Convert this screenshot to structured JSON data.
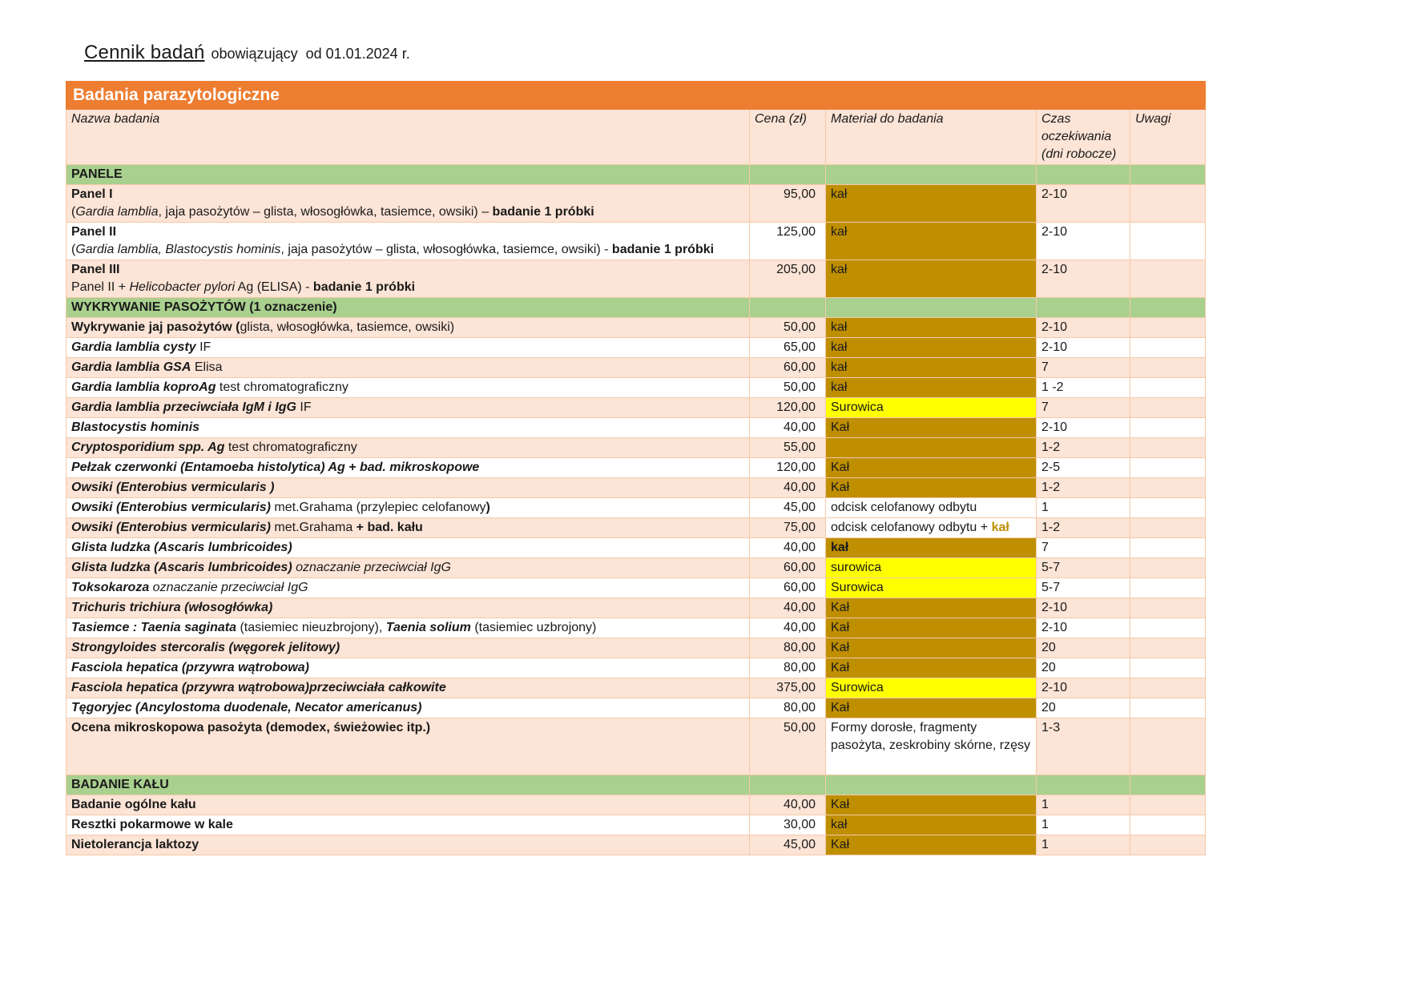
{
  "page": {
    "title_main": "Cennik badań",
    "title_suffix": "obowiązujący  od 01.01.2024 r."
  },
  "colors": {
    "header_orange": "#ED7D31",
    "row_peach": "#FCE4D6",
    "section_green": "#A9D08E",
    "material_gold": "#BF8F00",
    "material_yellow": "#FFFF00",
    "gold_text": "#BF8F00",
    "grid_line": "#F5C9A8"
  },
  "table": {
    "header_bar": "Badania parazytologiczne",
    "columns": [
      "Nazwa badania",
      "Cena (zł)",
      "Materiał do badania",
      "Czas oczekiwania (dni robocze)",
      "Uwagi"
    ],
    "rows": [
      {
        "kind": "section",
        "label": "PANELE"
      },
      {
        "kind": "test",
        "bg": "peach",
        "name": [
          [
            {
              "t": "Panel I",
              "b": 1
            }
          ],
          [
            {
              "t": "("
            },
            {
              "t": "Gardia lamblia",
              "i": 1
            },
            {
              "t": ", jaja pasożytów – glista, włosogłówka, tasiemce, owsiki) – "
            },
            {
              "t": "badanie 1 próbki",
              "b": 1
            }
          ]
        ],
        "price": "95,00",
        "mat": {
          "style": "gold",
          "runs": [
            {
              "t": "kał"
            }
          ]
        },
        "time": "2-10",
        "note": ""
      },
      {
        "kind": "test",
        "bg": "white",
        "name": [
          [
            {
              "t": "Panel II",
              "b": 1
            }
          ],
          [
            {
              "t": "("
            },
            {
              "t": "Gardia lamblia, Blastocystis hominis",
              "i": 1
            },
            {
              "t": ", jaja pasożytów – glista, włosogłówka, tasiemce, owsiki) - "
            },
            {
              "t": "badanie 1 próbki",
              "b": 1
            }
          ]
        ],
        "price": "125,00",
        "mat": {
          "style": "gold",
          "runs": [
            {
              "t": "kał"
            }
          ]
        },
        "time": "2-10",
        "note": ""
      },
      {
        "kind": "test",
        "bg": "peach",
        "name": [
          [
            {
              "t": "Panel III",
              "b": 1
            }
          ],
          [
            {
              "t": "Panel II + "
            },
            {
              "t": "Helicobacter pylori",
              "i": 1
            },
            {
              "t": " Ag (ELISA) - "
            },
            {
              "t": "badanie 1 próbki",
              "b": 1
            }
          ]
        ],
        "price": "205,00",
        "mat": {
          "style": "gold",
          "runs": [
            {
              "t": "kał"
            }
          ]
        },
        "time": "2-10",
        "note": ""
      },
      {
        "kind": "section",
        "label": "WYKRYWANIE PASOŻYTÓW (1 oznaczenie)"
      },
      {
        "kind": "test",
        "bg": "peach",
        "name": [
          [
            {
              "t": "Wykrywanie jaj pasożytów (",
              "b": 1
            },
            {
              "t": "glista, włosogłówka, tasiemce, owsiki)"
            }
          ]
        ],
        "price": "50,00",
        "mat": {
          "style": "gold",
          "runs": [
            {
              "t": "kał"
            }
          ]
        },
        "time": "2-10",
        "note": ""
      },
      {
        "kind": "test",
        "bg": "white",
        "name": [
          [
            {
              "t": "Gardia lamblia cysty",
              "b": 1,
              "i": 1
            },
            {
              "t": "  IF"
            }
          ]
        ],
        "price": "65,00",
        "mat": {
          "style": "gold",
          "runs": [
            {
              "t": "kał"
            }
          ]
        },
        "time": "2-10",
        "note": ""
      },
      {
        "kind": "test",
        "bg": "peach",
        "name": [
          [
            {
              "t": "Gardia lamblia  GSA",
              "b": 1,
              "i": 1
            },
            {
              "t": " Elisa"
            }
          ]
        ],
        "price": "60,00",
        "mat": {
          "style": "gold",
          "runs": [
            {
              "t": "kał"
            }
          ]
        },
        "time": "7",
        "note": ""
      },
      {
        "kind": "test",
        "bg": "white",
        "name": [
          [
            {
              "t": "Gardia lamblia  koproAg",
              "b": 1,
              "i": 1
            },
            {
              "t": " test chromatograficzny"
            }
          ]
        ],
        "price": "50,00",
        "mat": {
          "style": "gold",
          "runs": [
            {
              "t": "kał"
            }
          ]
        },
        "time": "1 -2",
        "note": ""
      },
      {
        "kind": "test",
        "bg": "peach",
        "name": [
          [
            {
              "t": "Gardia lamblia  przeciwciała IgM i IgG",
              "b": 1,
              "i": 1
            },
            {
              "t": "  IF"
            }
          ]
        ],
        "price": "120,00",
        "mat": {
          "style": "yellow",
          "runs": [
            {
              "t": "Surowica"
            }
          ]
        },
        "time": "7",
        "note": ""
      },
      {
        "kind": "test",
        "bg": "white",
        "name": [
          [
            {
              "t": "Blastocystis hominis",
              "b": 1,
              "i": 1
            }
          ]
        ],
        "price": "40,00",
        "mat": {
          "style": "gold",
          "runs": [
            {
              "t": "Kał"
            }
          ]
        },
        "time": "2-10",
        "note": ""
      },
      {
        "kind": "test",
        "bg": "peach",
        "name": [
          [
            {
              "t": "Cryptosporidium spp. Ag",
              "b": 1,
              "i": 1
            },
            {
              "t": " test chromatograficzny"
            }
          ]
        ],
        "price": "55,00",
        "mat": {
          "style": "gold",
          "runs": []
        },
        "time": "1-2",
        "note": ""
      },
      {
        "kind": "test",
        "bg": "white",
        "name": [
          [
            {
              "t": "Pełzak czerwonki (Entamoeba histolytica) Ag + bad. mikroskopowe",
              "b": 1,
              "i": 1
            }
          ]
        ],
        "price": "120,00",
        "mat": {
          "style": "gold",
          "runs": [
            {
              "t": "Kał"
            }
          ]
        },
        "time": "2-5",
        "note": ""
      },
      {
        "kind": "test",
        "bg": "peach",
        "name": [
          [
            {
              "t": "Owsiki (Enterobius vermicularis )",
              "b": 1,
              "i": 1
            }
          ]
        ],
        "price": "40,00",
        "mat": {
          "style": "gold",
          "runs": [
            {
              "t": "Kał"
            }
          ]
        },
        "time": "1-2",
        "note": ""
      },
      {
        "kind": "test",
        "bg": "white",
        "name": [
          [
            {
              "t": "Owsiki (Enterobius vermicularis)",
              "b": 1,
              "i": 1
            },
            {
              "t": " met.Grahama (przylepiec celofanowy"
            },
            {
              "t": ")",
              "b": 1
            }
          ]
        ],
        "price": "45,00",
        "mat": {
          "style": "plain",
          "runs": [
            {
              "t": "odcisk celofanowy odbytu"
            }
          ]
        },
        "time": "1",
        "note": ""
      },
      {
        "kind": "test",
        "bg": "peach",
        "name": [
          [
            {
              "t": "Owsiki (Enterobius vermicularis)",
              "b": 1,
              "i": 1
            },
            {
              "t": " met.Grahama "
            },
            {
              "t": " + bad. kału",
              "b": 1
            }
          ]
        ],
        "price": "75,00",
        "mat": {
          "style": "plain",
          "runs": [
            {
              "t": "odcisk celofanowy odbytu + "
            },
            {
              "t": "kał",
              "b": 1,
              "c": "gold"
            }
          ]
        },
        "time": "1-2",
        "note": ""
      },
      {
        "kind": "test",
        "bg": "white",
        "name": [
          [
            {
              "t": "Glista ludzka (Ascaris lumbricoides)",
              "b": 1,
              "i": 1
            }
          ]
        ],
        "price": "40,00",
        "mat": {
          "style": "gold",
          "runs": [
            {
              "t": "kał",
              "b": 1
            }
          ]
        },
        "time": "7",
        "note": ""
      },
      {
        "kind": "test",
        "bg": "peach",
        "name": [
          [
            {
              "t": "Glista ludzka (Ascaris lumbricoides)",
              "b": 1,
              "i": 1
            },
            {
              "t": " oznaczanie przeciwciał IgG",
              "i": 1
            }
          ]
        ],
        "price": "60,00",
        "mat": {
          "style": "yellow",
          "runs": [
            {
              "t": "surowica"
            }
          ]
        },
        "time": "5-7",
        "note": ""
      },
      {
        "kind": "test",
        "bg": "white",
        "name": [
          [
            {
              "t": "Toksokaroza",
              "b": 1,
              "i": 1
            },
            {
              "t": " oznaczanie przeciwciał IgG",
              "i": 1
            }
          ]
        ],
        "price": "60,00",
        "mat": {
          "style": "yellow",
          "runs": [
            {
              "t": "Surowica"
            }
          ]
        },
        "time": "5-7",
        "note": ""
      },
      {
        "kind": "test",
        "bg": "peach",
        "name": [
          [
            {
              "t": "Trichuris trichiura (włosogłówka)",
              "b": 1,
              "i": 1
            }
          ]
        ],
        "price": "40,00",
        "mat": {
          "style": "gold",
          "runs": [
            {
              "t": "Kał"
            }
          ]
        },
        "time": "2-10",
        "note": ""
      },
      {
        "kind": "test",
        "bg": "white",
        "name": [
          [
            {
              "t": "Tasiemce : Taenia saginata",
              "b": 1,
              "i": 1
            },
            {
              "t": " (tasiemiec nieuzbrojony), "
            },
            {
              "t": "Taenia solium",
              "b": 1,
              "i": 1
            },
            {
              "t": " (tasiemiec uzbrojony)"
            }
          ]
        ],
        "price": "40,00",
        "mat": {
          "style": "gold",
          "runs": [
            {
              "t": "Kał"
            }
          ]
        },
        "time": "2-10",
        "note": ""
      },
      {
        "kind": "test",
        "bg": "peach",
        "name": [
          [
            {
              "t": "Strongyloides stercoralis (węgorek jelitowy)",
              "b": 1,
              "i": 1
            }
          ]
        ],
        "price": "80,00",
        "mat": {
          "style": "gold",
          "runs": [
            {
              "t": "Kał"
            }
          ]
        },
        "time": "20",
        "note": ""
      },
      {
        "kind": "test",
        "bg": "white",
        "name": [
          [
            {
              "t": "Fasciola hepatica (przywra wątrobowa)",
              "b": 1,
              "i": 1
            }
          ]
        ],
        "price": "80,00",
        "mat": {
          "style": "gold",
          "runs": [
            {
              "t": "Kał"
            }
          ]
        },
        "time": "20",
        "note": ""
      },
      {
        "kind": "test",
        "bg": "peach",
        "name": [
          [
            {
              "t": "Fasciola hepatica (przywra wątrobowa)przeciwciała całkowite",
              "b": 1,
              "i": 1
            }
          ]
        ],
        "price": "375,00",
        "mat": {
          "style": "yellow",
          "runs": [
            {
              "t": "Surowica"
            }
          ]
        },
        "time": "2-10",
        "note": ""
      },
      {
        "kind": "test",
        "bg": "white",
        "name": [
          [
            {
              "t": "Tęgoryjec (Ancylostoma duodenale, Necator americanus)",
              "b": 1,
              "i": 1
            }
          ]
        ],
        "price": "80,00",
        "mat": {
          "style": "gold",
          "runs": [
            {
              "t": "Kał"
            }
          ]
        },
        "time": "20",
        "note": ""
      },
      {
        "kind": "test",
        "bg": "peach",
        "minh": 68,
        "name": [
          [
            {
              "t": "Ocena mikroskopowa pasożyta (demodex, świeżowiec itp.)",
              "b": 1
            }
          ]
        ],
        "price": "50,00",
        "mat": {
          "style": "plain",
          "runs": [
            {
              "t": "Formy dorosłe, fragmenty pasożyta, zeskrobiny skórne, rzęsy"
            }
          ]
        },
        "time": "1-3",
        "note": ""
      },
      {
        "kind": "section",
        "label": "BADANIE  KAŁU"
      },
      {
        "kind": "test",
        "bg": "peach",
        "name": [
          [
            {
              "t": "Badanie ogólne kału",
              "b": 1
            }
          ]
        ],
        "price": "40,00",
        "mat": {
          "style": "gold",
          "runs": [
            {
              "t": "Kał"
            }
          ]
        },
        "time": "1",
        "note": ""
      },
      {
        "kind": "test",
        "bg": "white",
        "name": [
          [
            {
              "t": "Resztki pokarmowe w kale",
              "b": 1
            }
          ]
        ],
        "price": "30,00",
        "mat": {
          "style": "gold",
          "runs": [
            {
              "t": "kał"
            }
          ]
        },
        "time": "1",
        "note": ""
      },
      {
        "kind": "test",
        "bg": "peach",
        "name": [
          [
            {
              "t": "Nietolerancja laktozy",
              "b": 1
            }
          ]
        ],
        "price": "45,00",
        "mat": {
          "style": "gold",
          "runs": [
            {
              "t": "Kał"
            }
          ]
        },
        "time": "1",
        "note": ""
      }
    ]
  }
}
